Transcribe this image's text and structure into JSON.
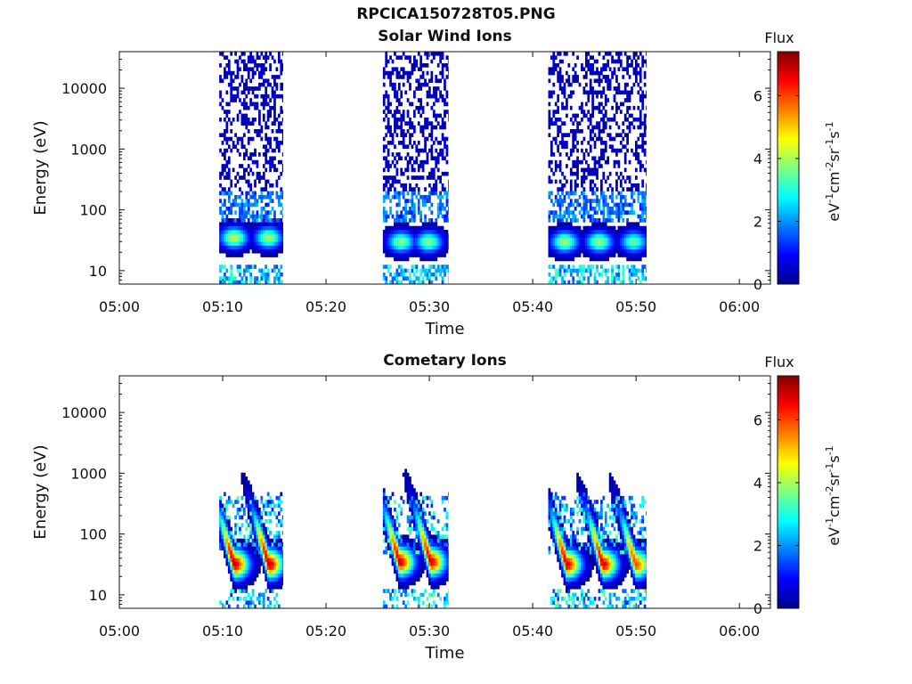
{
  "figure_title": "RPCICA150728T05.PNG",
  "chart_data": [
    {
      "type": "heatmap",
      "title": "Solar Wind Ions",
      "xlabel": "Time",
      "ylabel": "Energy (eV)",
      "y_scale": "log",
      "xlim": [
        "05:00",
        "06:03"
      ],
      "ylim": [
        6,
        40000
      ],
      "x_ticks": [
        "05:00",
        "05:10",
        "05:20",
        "05:30",
        "05:40",
        "05:50",
        "06:00"
      ],
      "y_ticks": [
        10,
        100,
        1000,
        10000
      ],
      "y_tick_labels": [
        "10",
        "100",
        "1000",
        "10000"
      ],
      "colorbar": {
        "label": "Flux",
        "units": "eV-1cm-2sr-1s-1",
        "range": [
          0,
          7.4
        ],
        "ticks": [
          "0",
          "2",
          "4",
          "6"
        ]
      },
      "scan_intervals": [
        [
          "05:09:40",
          "05:15:50"
        ],
        [
          "05:25:30",
          "05:31:50"
        ],
        [
          "05:41:30",
          "05:51:00"
        ]
      ],
      "flux_peaks": [
        {
          "time": "05:11:00",
          "energy": 35,
          "flux": 4.2
        },
        {
          "time": "05:14:20",
          "energy": 35,
          "flux": 4.0
        },
        {
          "time": "05:27:10",
          "energy": 30,
          "flux": 3.8
        },
        {
          "time": "05:29:50",
          "energy": 30,
          "flux": 3.8
        },
        {
          "time": "05:43:00",
          "energy": 30,
          "flux": 4.0
        },
        {
          "time": "05:46:20",
          "energy": 30,
          "flux": 3.9
        },
        {
          "time": "05:49:40",
          "energy": 30,
          "flux": 3.5
        }
      ]
    },
    {
      "type": "heatmap",
      "title": "Cometary Ions",
      "xlabel": "Time",
      "ylabel": "Energy (eV)",
      "y_scale": "log",
      "xlim": [
        "05:00",
        "06:03"
      ],
      "ylim": [
        6,
        40000
      ],
      "x_ticks": [
        "05:00",
        "05:10",
        "05:20",
        "05:30",
        "05:40",
        "05:50",
        "06:00"
      ],
      "y_ticks": [
        10,
        100,
        1000,
        10000
      ],
      "y_tick_labels": [
        "10",
        "100",
        "1000",
        "10000"
      ],
      "colorbar": {
        "label": "Flux",
        "units": "eV-1cm-2sr-1s-1",
        "range": [
          0,
          7.4
        ],
        "ticks": [
          "0",
          "2",
          "4",
          "6"
        ]
      },
      "scan_intervals": [
        [
          "05:09:40",
          "05:15:50"
        ],
        [
          "05:25:30",
          "05:31:50"
        ],
        [
          "05:41:30",
          "05:51:00"
        ]
      ],
      "flux_peaks": [
        {
          "time": "05:11:00",
          "energy": 32,
          "flux": 7.0
        },
        {
          "time": "05:14:20",
          "energy": 32,
          "flux": 7.0
        },
        {
          "time": "05:27:00",
          "energy": 35,
          "flux": 6.8
        },
        {
          "time": "05:30:00",
          "energy": 35,
          "flux": 6.8
        },
        {
          "time": "05:43:10",
          "energy": 32,
          "flux": 6.8
        },
        {
          "time": "05:46:40",
          "energy": 32,
          "flux": 6.8
        },
        {
          "time": "05:49:50",
          "energy": 32,
          "flux": 6.0
        }
      ]
    }
  ]
}
